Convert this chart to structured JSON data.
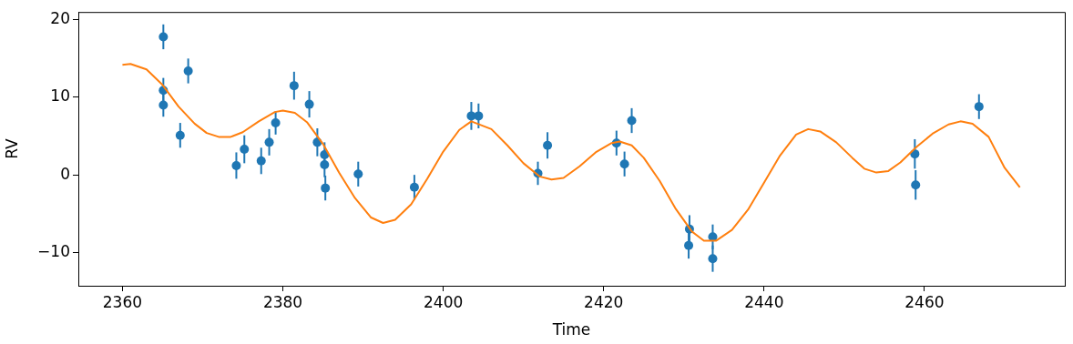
{
  "chart_data": {
    "type": "scatter",
    "xlabel": "Time",
    "ylabel": "RV",
    "xlim": [
      2354.5,
      2477.5
    ],
    "ylim": [
      -14.3,
      21
    ],
    "xticks": [
      2360,
      2380,
      2400,
      2420,
      2440,
      2460
    ],
    "yticks": [
      -10,
      0,
      10,
      20
    ],
    "grid": false,
    "legend": false,
    "series": [
      {
        "type": "scatter",
        "color": "#1f77b4",
        "marker": "circle",
        "x": [
          2365.1,
          2365.1,
          2365.1,
          2367.2,
          2368.2,
          2374.2,
          2375.2,
          2377.3,
          2378.3,
          2379.1,
          2381.4,
          2383.3,
          2384.3,
          2385.2,
          2385.2,
          2385.3,
          2389.4,
          2396.4,
          2403.5,
          2404.4,
          2411.8,
          2413.0,
          2421.6,
          2422.6,
          2423.5,
          2430.7,
          2430.6,
          2433.6,
          2433.6,
          2458.8,
          2458.9,
          2466.8
        ],
        "values": [
          17.8,
          10.9,
          9.0,
          5.1,
          13.4,
          1.2,
          3.3,
          1.8,
          4.2,
          6.7,
          11.5,
          9.1,
          4.2,
          2.6,
          1.3,
          -1.7,
          0.1,
          -1.6,
          7.6,
          7.6,
          0.2,
          3.8,
          4.1,
          1.4,
          7.0,
          -7.0,
          -9.1,
          -8.0,
          -10.8,
          2.7,
          -1.3,
          8.8
        ],
        "errors": [
          1.6,
          1.6,
          1.5,
          1.6,
          1.6,
          1.7,
          1.8,
          1.7,
          1.7,
          1.5,
          1.8,
          1.7,
          1.8,
          1.6,
          1.6,
          1.6,
          1.6,
          1.6,
          1.8,
          1.6,
          1.5,
          1.7,
          1.6,
          1.6,
          1.6,
          1.8,
          1.7,
          1.6,
          1.7,
          1.9,
          1.9,
          1.6
        ]
      },
      {
        "type": "line",
        "color": "#ff7f0e",
        "marker": "none",
        "x": [
          2360,
          2361,
          2363,
          2365,
          2367,
          2369,
          2370.5,
          2372,
          2373.5,
          2375,
          2377,
          2379,
          2380,
          2381.5,
          2383,
          2385,
          2387,
          2389,
          2391,
          2392.5,
          2394,
          2396,
          2398,
          2400,
          2402,
          2403.5,
          2406,
          2408,
          2410,
          2412,
          2413.5,
          2415,
          2417,
          2419,
          2421,
          2422,
          2423.5,
          2425,
          2427,
          2429,
          2431,
          2432.5,
          2434,
          2436,
          2438,
          2440,
          2442,
          2444,
          2445.5,
          2447,
          2449,
          2451,
          2452.5,
          2454,
          2455.5,
          2457,
          2459,
          2461,
          2463,
          2464.5,
          2466,
          2468,
          2470,
          2471.9
        ],
        "values": [
          14.2,
          14.3,
          13.6,
          11.6,
          8.8,
          6.6,
          5.4,
          4.9,
          4.9,
          5.5,
          6.9,
          8.1,
          8.3,
          8.0,
          6.8,
          4.0,
          0.3,
          -3.0,
          -5.5,
          -6.2,
          -5.8,
          -3.8,
          -0.5,
          3.0,
          5.8,
          6.9,
          5.9,
          3.8,
          1.5,
          -0.2,
          -0.6,
          -0.4,
          1.1,
          2.9,
          4.1,
          4.3,
          3.8,
          2.2,
          -0.8,
          -4.4,
          -7.3,
          -8.5,
          -8.5,
          -7.1,
          -4.5,
          -1.0,
          2.5,
          5.2,
          5.9,
          5.6,
          4.2,
          2.2,
          0.8,
          0.3,
          0.5,
          1.6,
          3.6,
          5.3,
          6.5,
          6.9,
          6.6,
          4.9,
          0.9,
          -1.6
        ]
      }
    ]
  }
}
